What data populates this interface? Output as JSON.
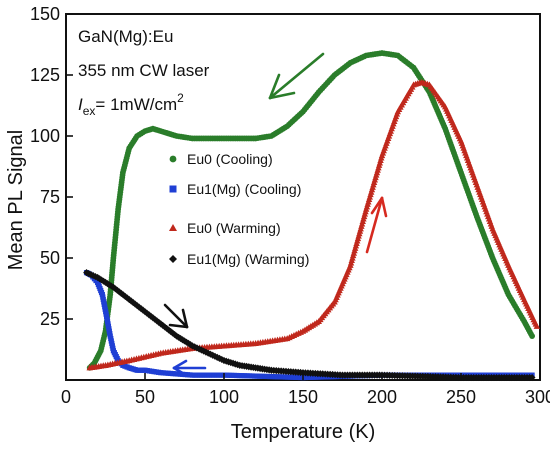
{
  "chart_data": {
    "type": "scatter",
    "title": "",
    "xlabel": "Temperature (K)",
    "ylabel": "Mean PL Signal",
    "xlim": [
      0,
      300
    ],
    "ylim": [
      0,
      150
    ],
    "x_ticks": [
      0,
      50,
      100,
      150,
      200,
      250,
      300
    ],
    "y_ticks": [
      25,
      50,
      75,
      100,
      125,
      150
    ],
    "x_tick_labels": [
      "0",
      "50",
      "100",
      "150",
      "200",
      "250",
      "300"
    ],
    "y_tick_labels": [
      "25",
      "50",
      "75",
      "100",
      "125",
      "150"
    ],
    "grid": false,
    "legend_position": "center-right",
    "annotations": {
      "sample": "GaN(Mg):Eu",
      "laser": "355 nm CW laser",
      "excitation_symbol": "I",
      "excitation_sub": "ex",
      "excitation_value": "= 1mW/cm",
      "excitation_sup": "2"
    },
    "series": [
      {
        "name": "Eu0 (Cooling)",
        "color": "#2a7d2a",
        "marker": "circle",
        "points": [
          [
            15,
            5
          ],
          [
            18,
            7
          ],
          [
            22,
            12
          ],
          [
            25,
            20
          ],
          [
            28,
            35
          ],
          [
            30,
            50
          ],
          [
            33,
            70
          ],
          [
            36,
            85
          ],
          [
            40,
            95
          ],
          [
            45,
            100
          ],
          [
            50,
            102
          ],
          [
            55,
            103
          ],
          [
            60,
            102
          ],
          [
            65,
            101
          ],
          [
            70,
            100
          ],
          [
            80,
            99
          ],
          [
            90,
            99
          ],
          [
            100,
            99
          ],
          [
            110,
            99
          ],
          [
            120,
            99
          ],
          [
            130,
            100
          ],
          [
            140,
            104
          ],
          [
            150,
            110
          ],
          [
            160,
            118
          ],
          [
            170,
            125
          ],
          [
            180,
            130
          ],
          [
            190,
            133
          ],
          [
            200,
            134
          ],
          [
            210,
            133
          ],
          [
            220,
            128
          ],
          [
            230,
            118
          ],
          [
            240,
            103
          ],
          [
            250,
            85
          ],
          [
            260,
            67
          ],
          [
            270,
            50
          ],
          [
            280,
            35
          ],
          [
            290,
            24
          ],
          [
            295,
            18
          ]
        ]
      },
      {
        "name": "Eu1(Mg) (Cooling)",
        "color": "#1f3fd4",
        "marker": "square",
        "points": [
          [
            13,
            44
          ],
          [
            16,
            43
          ],
          [
            20,
            40
          ],
          [
            23,
            35
          ],
          [
            26,
            25
          ],
          [
            28,
            18
          ],
          [
            30,
            12
          ],
          [
            33,
            8
          ],
          [
            36,
            6
          ],
          [
            40,
            5
          ],
          [
            45,
            4
          ],
          [
            50,
            4
          ],
          [
            60,
            3
          ],
          [
            80,
            2
          ],
          [
            100,
            2
          ],
          [
            150,
            1
          ],
          [
            200,
            2
          ],
          [
            250,
            2
          ],
          [
            295,
            2
          ]
        ]
      },
      {
        "name": "Eu0 (Warming)",
        "color": "#c0281c",
        "marker": "triangle",
        "points": [
          [
            15,
            5
          ],
          [
            25,
            6
          ],
          [
            40,
            8
          ],
          [
            60,
            11
          ],
          [
            80,
            13
          ],
          [
            100,
            14
          ],
          [
            120,
            15
          ],
          [
            140,
            17
          ],
          [
            150,
            20
          ],
          [
            160,
            24
          ],
          [
            170,
            32
          ],
          [
            180,
            47
          ],
          [
            190,
            70
          ],
          [
            200,
            92
          ],
          [
            210,
            110
          ],
          [
            220,
            121
          ],
          [
            225,
            122
          ],
          [
            230,
            121
          ],
          [
            240,
            112
          ],
          [
            250,
            98
          ],
          [
            260,
            80
          ],
          [
            270,
            62
          ],
          [
            280,
            47
          ],
          [
            290,
            33
          ],
          [
            298,
            22
          ]
        ]
      },
      {
        "name": "Eu1(Mg) (Warming)",
        "color": "#111111",
        "marker": "diamond",
        "points": [
          [
            13,
            44
          ],
          [
            20,
            42
          ],
          [
            30,
            38
          ],
          [
            40,
            33
          ],
          [
            50,
            28
          ],
          [
            60,
            23
          ],
          [
            70,
            18
          ],
          [
            80,
            14
          ],
          [
            90,
            11
          ],
          [
            100,
            8
          ],
          [
            110,
            6
          ],
          [
            120,
            5
          ],
          [
            130,
            4
          ],
          [
            150,
            3
          ],
          [
            175,
            2
          ],
          [
            200,
            2
          ],
          [
            250,
            1
          ],
          [
            295,
            1
          ]
        ]
      }
    ]
  }
}
